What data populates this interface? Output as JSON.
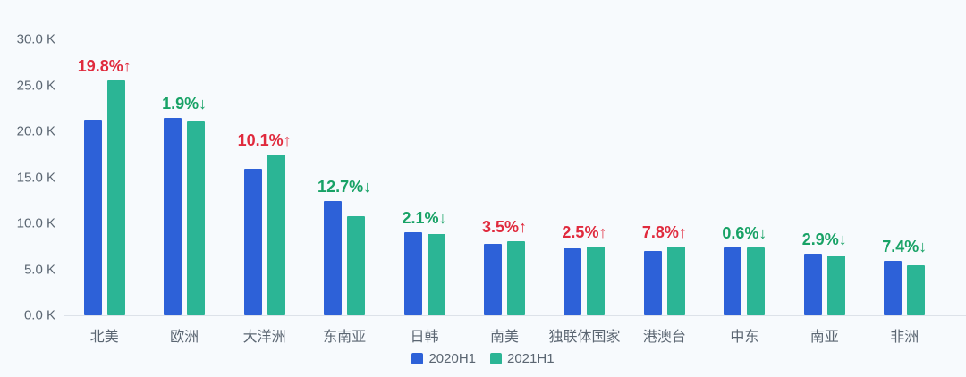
{
  "chart_data": {
    "type": "bar",
    "title": "",
    "categories": [
      "北美",
      "欧洲",
      "大洋洲",
      "东南亚",
      "日韩",
      "南美",
      "独联体国家",
      "港澳台",
      "中东",
      "南亚",
      "非洲"
    ],
    "series": [
      {
        "name": "2020H1",
        "color": "#2d61d8",
        "values": [
          21.3,
          21.5,
          15.9,
          12.4,
          9.0,
          7.8,
          7.3,
          7.0,
          7.4,
          6.7,
          5.9
        ]
      },
      {
        "name": "2021H1",
        "color": "#2bb595",
        "values": [
          25.5,
          21.1,
          17.5,
          10.8,
          8.8,
          8.1,
          7.5,
          7.5,
          7.35,
          6.5,
          5.45
        ]
      }
    ],
    "change_labels": [
      {
        "text": "19.8%↑",
        "direction": "up"
      },
      {
        "text": "1.9%↓",
        "direction": "down"
      },
      {
        "text": "10.1%↑",
        "direction": "up"
      },
      {
        "text": "12.7%↓",
        "direction": "down"
      },
      {
        "text": "2.1%↓",
        "direction": "down"
      },
      {
        "text": "3.5%↑",
        "direction": "up"
      },
      {
        "text": "2.5%↑",
        "direction": "up"
      },
      {
        "text": "7.8%↑",
        "direction": "up"
      },
      {
        "text": "0.6%↓",
        "direction": "down"
      },
      {
        "text": "2.9%↓",
        "direction": "down"
      },
      {
        "text": "7.4%↓",
        "direction": "down"
      }
    ],
    "y_ticks": [
      "30.0 K",
      "25.0 K",
      "20.0 K",
      "15.0 K",
      "10.0 K",
      "5.0 K",
      "0.0 K"
    ],
    "ylim": [
      0,
      30
    ],
    "unit": "K",
    "grid": false,
    "legend_position": "bottom",
    "legend": [
      "2020H1",
      "2021H1"
    ]
  },
  "colors": {
    "up_label": "#e02a3d",
    "down_label": "#18a266",
    "axis_text": "#5b6672",
    "baseline": "#dde2e9",
    "background": "#f7fafd"
  }
}
